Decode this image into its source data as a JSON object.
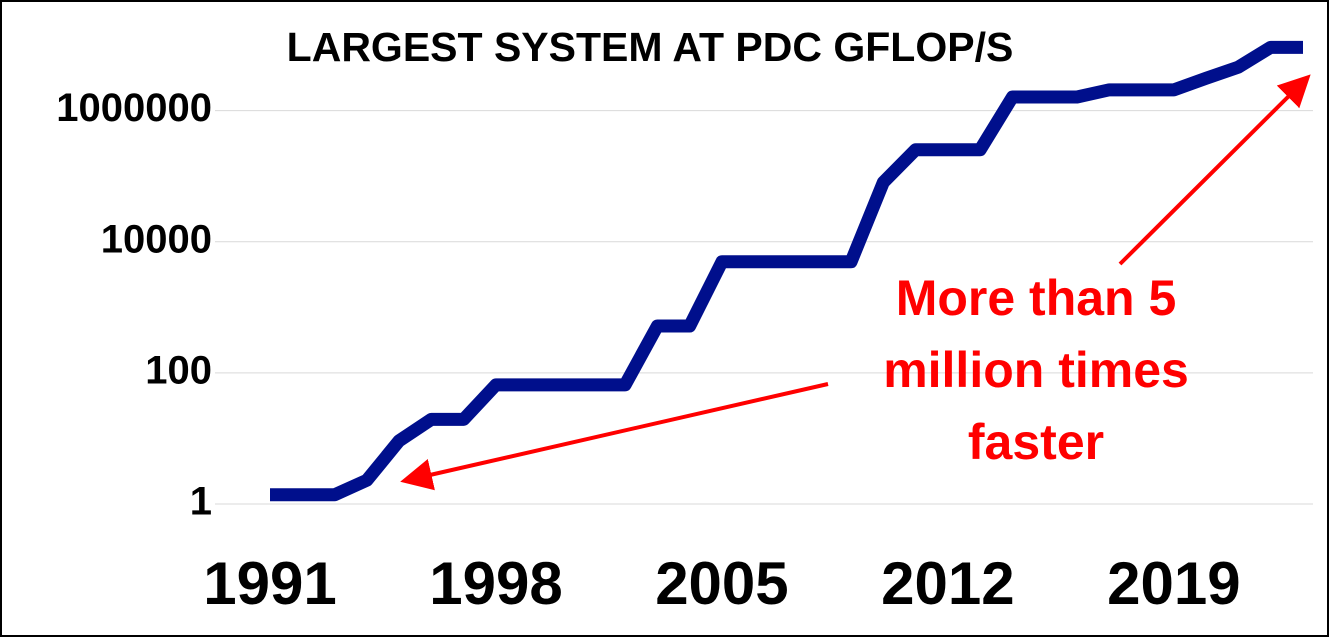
{
  "chart_data": {
    "type": "line",
    "title": "LARGEST SYSTEM  AT PDC GFLOP/S",
    "annotation": [
      "More than 5",
      "million times",
      "faster"
    ],
    "x": [
      1991,
      1992,
      1993,
      1994,
      1995,
      1996,
      1997,
      1998,
      1999,
      2000,
      2001,
      2002,
      2003,
      2004,
      2005,
      2006,
      2007,
      2008,
      2009,
      2010,
      2011,
      2012,
      2013,
      2014,
      2015,
      2016,
      2017,
      2018,
      2019,
      2020,
      2021,
      2022,
      2023
    ],
    "series": [
      {
        "name": "Largest system",
        "color": "#000f8c",
        "values": [
          1.2,
          1.2,
          1.2,
          2,
          8,
          17,
          17,
          57,
          57,
          57,
          57,
          57,
          450,
          450,
          4300,
          4300,
          4300,
          4300,
          4300,
          70000,
          220000,
          220000,
          220000,
          1400000,
          1400000,
          1400000,
          1800000,
          1800000,
          1800000,
          2700000,
          4000000,
          8000000,
          8000000
        ]
      }
    ],
    "xlim": [
      1991,
      2023
    ],
    "xticks": [
      1991,
      1998,
      2005,
      2012,
      2019
    ],
    "ylim": [
      1,
      10000000
    ],
    "yticks": [
      1,
      100,
      10000,
      1000000
    ],
    "ylog": true,
    "grid": true,
    "annotation_color": "#ff0000"
  }
}
